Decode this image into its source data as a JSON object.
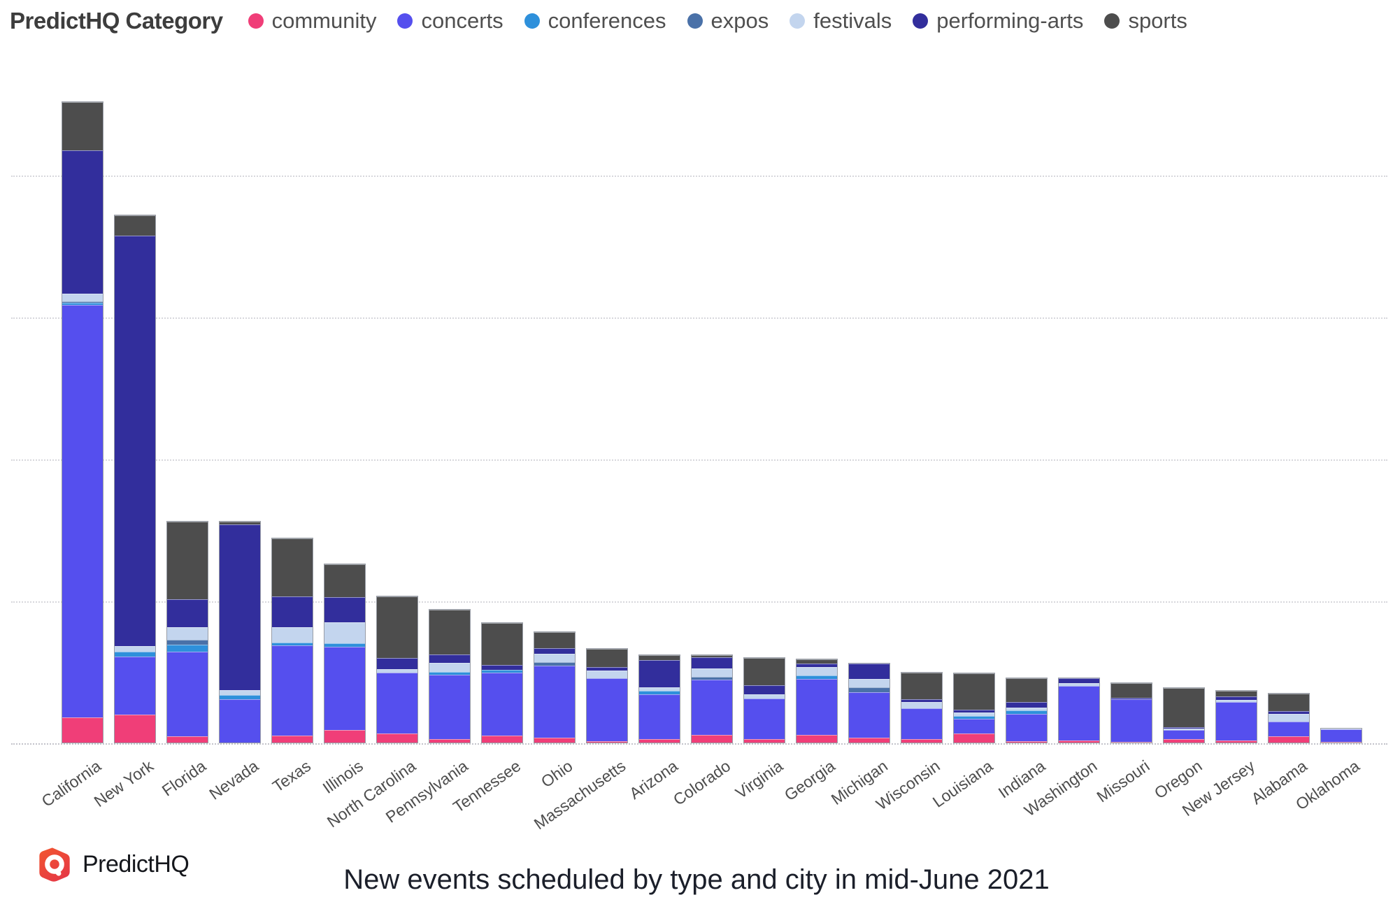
{
  "legend": {
    "title": "PredictHQ Category"
  },
  "footer": {
    "brand": "PredictHQ",
    "caption": "New events scheduled by type and city in mid-June 2021"
  },
  "colors": {
    "community": "#F03E78",
    "concerts": "#554FEE",
    "conferences": "#2E90DB",
    "expos": "#4A71A8",
    "festivals": "#C3D5EE",
    "performing-arts": "#322E9C",
    "sports": "#4D4D4D"
  },
  "chart_data": {
    "type": "bar",
    "stacked": true,
    "orientation": "vertical",
    "legend_position": "top",
    "grid": "dotted horizontal",
    "y_axis_labels_visible": false,
    "unit_note": "y axis is unlabeled in the source image; values below are estimated proportional units (1 unit = 1 px of bar height)",
    "ylim": [
      0,
      1015
    ],
    "gridline_values": [
      203,
      406,
      609,
      812
    ],
    "categories": [
      "California",
      "New York",
      "Florida",
      "Nevada",
      "Texas",
      "Illinois",
      "North Carolina",
      "Pennsylvania",
      "Tennessee",
      "Ohio",
      "Massachusetts",
      "Arizona",
      "Colorado",
      "Virginia",
      "Georgia",
      "Michigan",
      "Wisconsin",
      "Louisiana",
      "Indiana",
      "Washington",
      "Missouri",
      "Oregon",
      "New Jersey",
      "Alabama",
      "Oklahoma"
    ],
    "series": [
      {
        "name": "community",
        "values": [
          36,
          40,
          9,
          0,
          10,
          18,
          13,
          5,
          10,
          7,
          2,
          5,
          11,
          5,
          11,
          7,
          5,
          13,
          2,
          3,
          1,
          5,
          3,
          9,
          1
        ]
      },
      {
        "name": "concerts",
        "values": [
          591,
          83,
          122,
          62,
          130,
          120,
          88,
          93,
          91,
          104,
          91,
          65,
          80,
          59,
          82,
          66,
          45,
          22,
          40,
          80,
          62,
          13,
          57,
          22,
          20
        ]
      },
      {
        "name": "conferences",
        "values": [
          3,
          7,
          10,
          6,
          4,
          5,
          0,
          4,
          4,
          0,
          0,
          5,
          0,
          0,
          5,
          0,
          0,
          4,
          5,
          0,
          0,
          0,
          0,
          0,
          0
        ]
      },
      {
        "name": "expos",
        "values": [
          2,
          0,
          7,
          0,
          0,
          0,
          0,
          0,
          0,
          5,
          0,
          0,
          5,
          0,
          0,
          7,
          0,
          0,
          0,
          0,
          0,
          0,
          0,
          0,
          0
        ]
      },
      {
        "name": "festivals",
        "values": [
          11,
          8,
          18,
          7,
          22,
          30,
          5,
          13,
          0,
          13,
          12,
          5,
          12,
          6,
          12,
          13,
          9,
          5,
          4,
          4,
          0,
          2,
          3,
          11,
          1
        ]
      },
      {
        "name": "performing-arts",
        "values": [
          206,
          589,
          40,
          239,
          44,
          37,
          16,
          12,
          7,
          8,
          5,
          40,
          16,
          13,
          5,
          22,
          4,
          4,
          8,
          7,
          3,
          2,
          5,
          4,
          0
        ]
      },
      {
        "name": "sports",
        "values": [
          69,
          29,
          112,
          4,
          84,
          47,
          89,
          65,
          61,
          23,
          26,
          7,
          3,
          40,
          6,
          0,
          39,
          53,
          35,
          0,
          21,
          58,
          8,
          26,
          0
        ]
      }
    ],
    "totals": [
      918,
      756,
      318,
      318,
      294,
      257,
      211,
      192,
      173,
      160,
      136,
      127,
      127,
      123,
      121,
      115,
      102,
      101,
      94,
      94,
      87,
      80,
      76,
      72,
      22
    ]
  }
}
